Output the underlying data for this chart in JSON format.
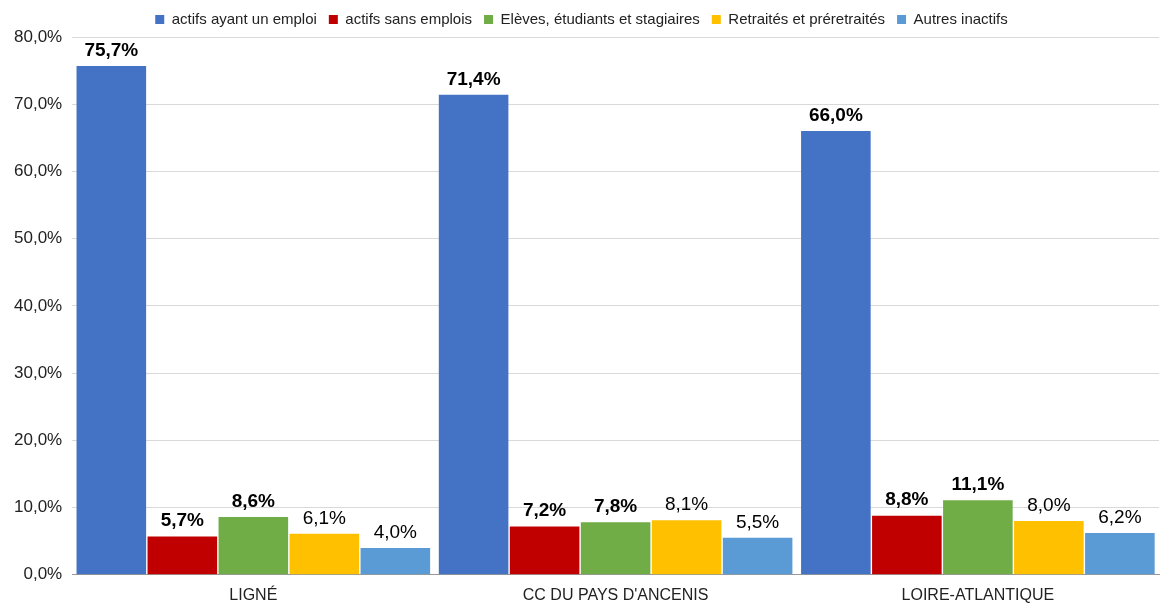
{
  "chart_data": {
    "type": "bar",
    "categories": [
      "LIGNÉ",
      "CC DU PAYS D'ANCENIS",
      "LOIRE-ATLANTIQUE"
    ],
    "series": [
      {
        "name": "actifs ayant un emploi",
        "color": "#4472c4",
        "values": [
          75.7,
          71.4,
          66.0
        ],
        "value_labels": [
          "75,7%",
          "71,4%",
          "66,0%"
        ]
      },
      {
        "name": "actifs sans emplois",
        "color": "#c00000",
        "values": [
          5.7,
          7.2,
          8.8
        ],
        "value_labels": [
          "5,7%",
          "7,2%",
          "8,8%"
        ]
      },
      {
        "name": "Elèves, étudiants et stagiaires",
        "color": "#70ad47",
        "values": [
          8.6,
          7.8,
          11.1
        ],
        "value_labels": [
          "8,6%",
          "7,8%",
          "11,1%"
        ]
      },
      {
        "name": "Retraités et préretraités",
        "color": "#ffc000",
        "values": [
          6.1,
          8.1,
          8.0
        ],
        "value_labels": [
          "6,1%",
          "8,1%",
          "8,0%"
        ]
      },
      {
        "name": "Autres inactifs",
        "color": "#5b9bd5",
        "values": [
          4.0,
          5.5,
          6.2
        ],
        "value_labels": [
          "4,0%",
          "5,5%",
          "6,2%"
        ]
      }
    ],
    "ylim": [
      0,
      80
    ],
    "yticks": [
      {
        "value": 0,
        "label": "0,0%"
      },
      {
        "value": 10,
        "label": "10,0%"
      },
      {
        "value": 20,
        "label": "20,0%"
      },
      {
        "value": 30,
        "label": "30,0%"
      },
      {
        "value": 40,
        "label": "40,0%"
      },
      {
        "value": 50,
        "label": "50,0%"
      },
      {
        "value": 60,
        "label": "60,0%"
      },
      {
        "value": 70,
        "label": "70,0%"
      },
      {
        "value": 80,
        "label": "80,0%"
      }
    ],
    "grid": "y",
    "legend": "top"
  }
}
